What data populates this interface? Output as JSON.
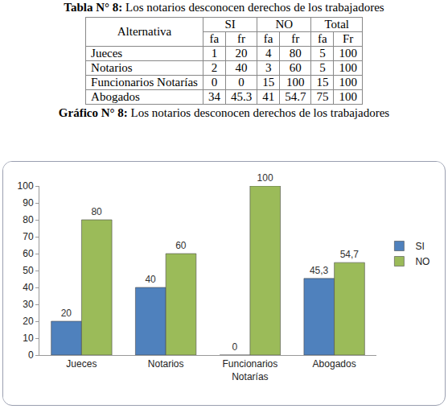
{
  "table": {
    "caption": {
      "label": "Tabla N° 8:",
      "text": "Los notarios desconocen derechos de los trabajadores"
    },
    "header": {
      "first": "Alternativa",
      "groups": [
        "SI",
        "NO",
        "Total"
      ],
      "sub": [
        "fa",
        "fr",
        "fa",
        "fr",
        "fa",
        "Fr"
      ]
    },
    "rows": [
      [
        "Jueces",
        1,
        20,
        4,
        80,
        5,
        100
      ],
      [
        "Notarios",
        2,
        40,
        3,
        60,
        5,
        100
      ],
      [
        "Funcionarios Notarías",
        0,
        0,
        15,
        100,
        15,
        100
      ],
      [
        "Abogados",
        34,
        45.3,
        41,
        54.7,
        75,
        100
      ]
    ]
  },
  "chart_caption": {
    "label": "Gráfico N° 8:",
    "text": "Los notarios desconocen derechos de los trabajadores"
  },
  "chart_data": {
    "type": "bar",
    "categories": [
      "Jueces",
      "Notarios",
      "Funcionarios Notarías",
      "Abogados"
    ],
    "series": [
      {
        "name": "SI",
        "color": "#4f81bd",
        "values": [
          20,
          40,
          0,
          45.3
        ],
        "value_labels": [
          "20",
          "40",
          "0",
          "45,3"
        ]
      },
      {
        "name": "NO",
        "color": "#9bbb59",
        "values": [
          80,
          60,
          100,
          54.7
        ],
        "value_labels": [
          "80",
          "60",
          "100",
          "54,7"
        ]
      }
    ],
    "ylim": [
      0,
      100
    ],
    "yticks": [
      0,
      10,
      20,
      30,
      40,
      50,
      60,
      70,
      80,
      90,
      100
    ],
    "grid": false,
    "legend": "right",
    "data_labels": true
  }
}
